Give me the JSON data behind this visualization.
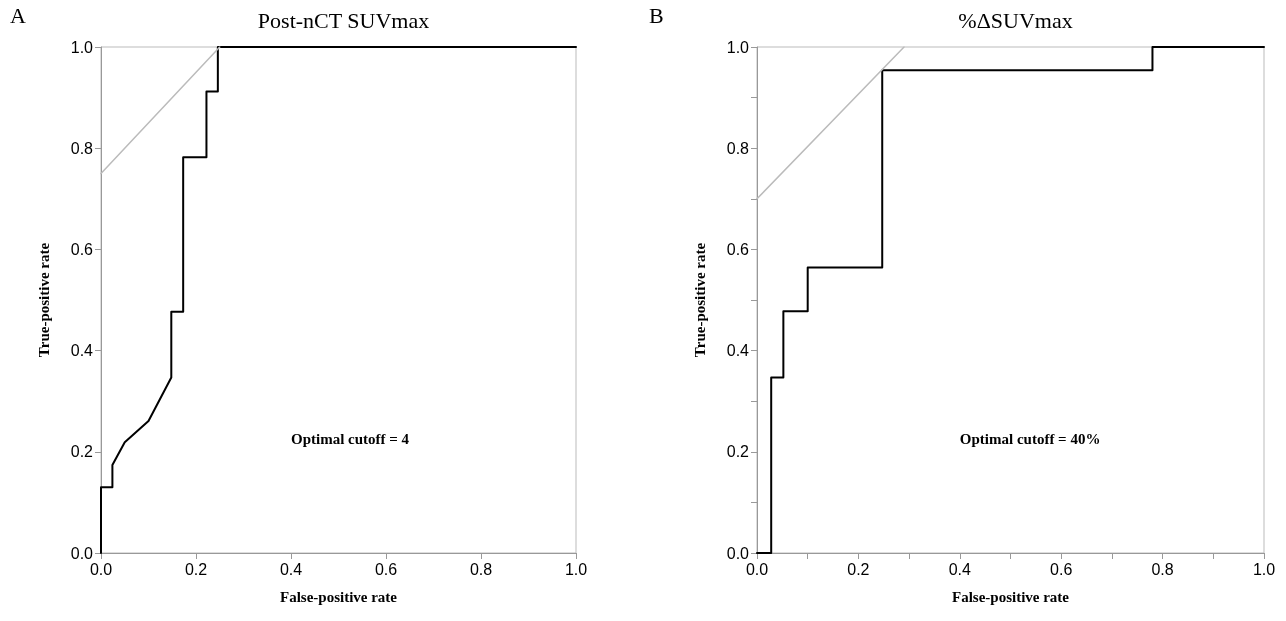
{
  "chart_data": [
    {
      "type": "line",
      "title": "Post-nCT SUVmax",
      "xlabel": "False-positive rate",
      "ylabel": "True-positive rate",
      "annotations": [
        "A",
        "Optimal cutoff = 4"
      ],
      "xlim": [
        0,
        1
      ],
      "ylim": [
        0,
        1
      ],
      "xticks": [
        {
          "value": 0,
          "label": "0.0"
        },
        0.2,
        0.4,
        0.6,
        0.8,
        {
          "value": 1,
          "label": "1.0"
        }
      ],
      "yticks": [
        {
          "value": 0,
          "label": "0.0"
        },
        0.2,
        0.4,
        0.6,
        0.8,
        {
          "value": 1,
          "label": "1.0"
        }
      ],
      "grid": false,
      "marker": "none",
      "line_style": "solid",
      "series": [
        {
          "color": "#000000",
          "x": [
            0,
            0,
            0.024,
            0.024,
            0.05,
            0.1,
            0.148,
            0.148,
            0.173,
            0.173,
            0.222,
            0.222,
            0.246,
            0.246,
            1
          ],
          "values": [
            0,
            0.13,
            0.13,
            0.174,
            0.219,
            0.261,
            0.347,
            0.477,
            0.477,
            0.782,
            0.782,
            0.912,
            0.912,
            1,
            1
          ]
        },
        {
          "color": "#bbbbbb",
          "x": [
            0,
            0.25
          ],
          "values": [
            0.75,
            1
          ]
        }
      ]
    },
    {
      "type": "line",
      "title": "%ΔSUVmax",
      "xlabel": "False-positive rate",
      "ylabel": "True-positive rate",
      "annotations": [
        "B",
        "Optimal cutoff = 40%"
      ],
      "xlim": [
        0,
        1
      ],
      "ylim": [
        0,
        1
      ],
      "xticks": [
        {
          "value": 0,
          "label": "0.0"
        },
        {
          "value": 0.1,
          "label": null
        },
        0.2,
        {
          "value": 0.3,
          "label": null
        },
        0.4,
        {
          "value": 0.5,
          "label": null
        },
        0.6,
        {
          "value": 0.7,
          "label": null
        },
        0.8,
        {
          "value": 0.9,
          "label": null
        },
        {
          "value": 1,
          "label": "1.0"
        }
      ],
      "yticks": [
        {
          "value": 0,
          "label": "0.0"
        },
        {
          "value": 0.1,
          "label": null
        },
        0.2,
        {
          "value": 0.3,
          "label": null
        },
        0.4,
        {
          "value": 0.5,
          "label": null
        },
        0.6,
        {
          "value": 0.7,
          "label": null
        },
        0.8,
        {
          "value": 0.9,
          "label": null
        },
        {
          "value": 1,
          "label": "1.0"
        }
      ],
      "grid": false,
      "marker": "none",
      "line_style": "solid",
      "series": [
        {
          "color": "#000000",
          "x": [
            0,
            0.028,
            0.028,
            0.052,
            0.052,
            0.1,
            0.1,
            0.247,
            0.247,
            0.78,
            0.78,
            1
          ],
          "values": [
            0,
            0,
            0.347,
            0.347,
            0.478,
            0.478,
            0.564,
            0.564,
            0.954,
            0.954,
            1,
            1
          ]
        },
        {
          "color": "#bbbbbb",
          "x": [
            0,
            0.29
          ],
          "values": [
            0.7,
            1
          ]
        }
      ]
    }
  ]
}
